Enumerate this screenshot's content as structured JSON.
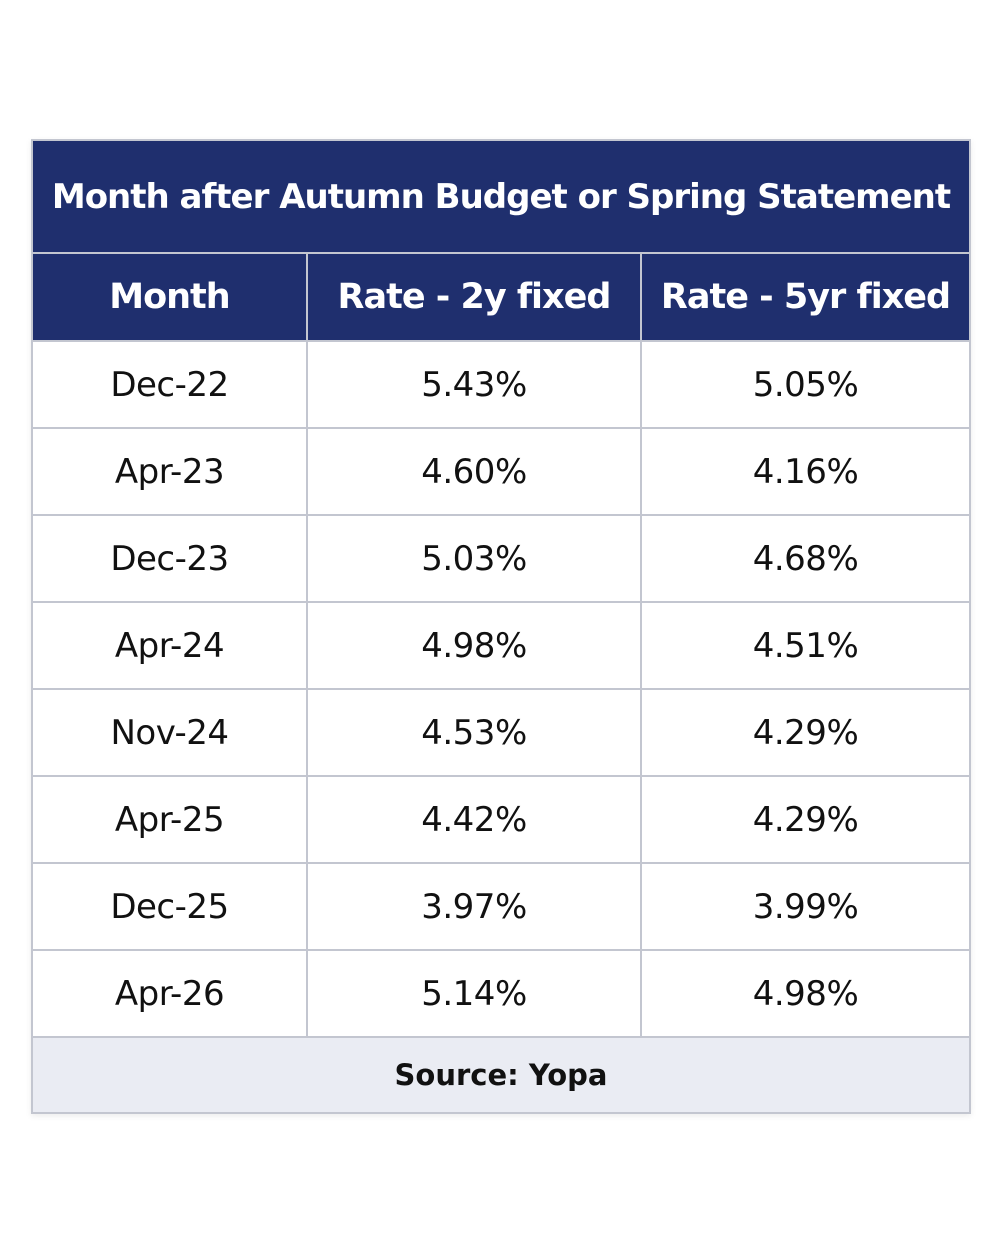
{
  "chart_data": {
    "type": "table",
    "title": "Month after Autumn Budget or Spring Statement",
    "columns": [
      "Month",
      "Rate - 2y fixed",
      "Rate - 5yr fixed"
    ],
    "rows": [
      [
        "Dec-22",
        "5.43%",
        "5.05%"
      ],
      [
        "Apr-23",
        "4.60%",
        "4.16%"
      ],
      [
        "Dec-23",
        "5.03%",
        "4.68%"
      ],
      [
        "Apr-24",
        "4.98%",
        "4.51%"
      ],
      [
        "Nov-24",
        "4.53%",
        "4.29%"
      ],
      [
        "Apr-25",
        "4.42%",
        "4.29%"
      ],
      [
        "Dec-25",
        "3.97%",
        "3.99%"
      ],
      [
        "Apr-26",
        "5.14%",
        "4.98%"
      ]
    ],
    "source": "Source: Yopa"
  },
  "colors": {
    "header_background": "#1f2f6e",
    "header_text": "#ffffff",
    "grid_line": "#c3c6d0",
    "footer_background": "#eaecf3"
  }
}
